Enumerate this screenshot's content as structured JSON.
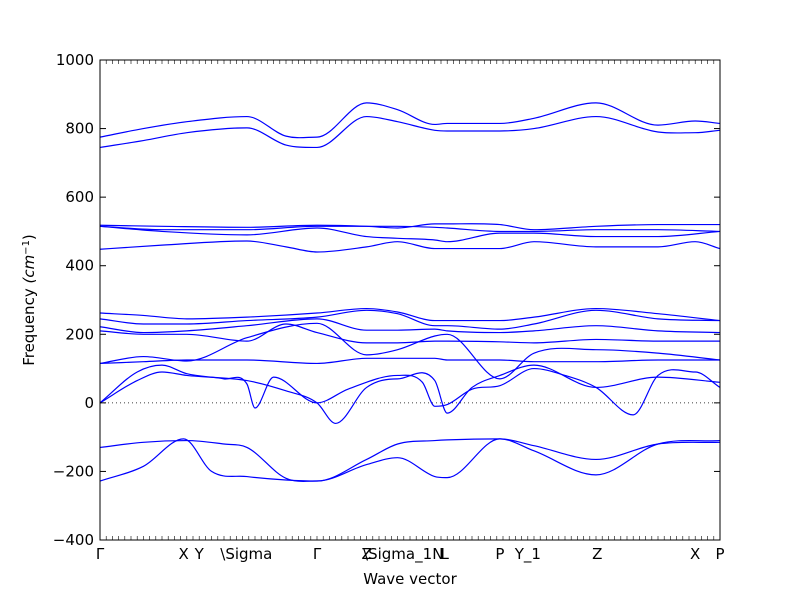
{
  "chart_data": {
    "type": "line",
    "xlabel": "Wave vector",
    "ylabel": "Frequency ($cm^{-1}$)",
    "ylabel_parts": {
      "text": "Frequency ",
      "unit": "(cm",
      "exponent": "−1",
      "close": ")"
    },
    "ylim": [
      -400,
      1000
    ],
    "yticks": [
      -400,
      -200,
      0,
      200,
      400,
      600,
      800,
      1000
    ],
    "xlim": [
      0,
      1
    ],
    "xticks": [
      {
        "x": 0.0,
        "label": "Γ"
      },
      {
        "x": 0.135,
        "label": "X"
      },
      {
        "x": 0.16,
        "label": "Y"
      },
      {
        "x": 0.236,
        "label": "\\Sigma"
      },
      {
        "x": 0.35,
        "label": "Γ"
      },
      {
        "x": 0.43,
        "label": "Z"
      },
      {
        "x": 0.48,
        "label": "\\Sigma_1"
      },
      {
        "x": 0.545,
        "label": "N"
      },
      {
        "x": 0.556,
        "label": "L"
      },
      {
        "x": 0.645,
        "label": "P"
      },
      {
        "x": 0.69,
        "label": "Y_1"
      },
      {
        "x": 0.802,
        "label": "Z"
      },
      {
        "x": 0.96,
        "label": "X"
      },
      {
        "x": 1.0,
        "label": "P"
      }
    ],
    "grid": false,
    "zero_line": true,
    "colors": {
      "bands": "#0000ff",
      "zero_line": "#000000"
    },
    "series": [
      {
        "x": [
          0,
          0.07,
          0.14,
          0.237,
          0.3,
          0.35,
          0.43,
          0.48,
          0.54,
          0.56,
          0.645,
          0.7,
          0.8,
          0.9,
          0.96,
          1.0
        ],
        "y": [
          775,
          800,
          820,
          835,
          778,
          775,
          875,
          855,
          812,
          815,
          815,
          830,
          875,
          810,
          822,
          815
        ]
      },
      {
        "x": [
          0,
          0.07,
          0.14,
          0.237,
          0.3,
          0.35,
          0.43,
          0.48,
          0.54,
          0.56,
          0.645,
          0.7,
          0.8,
          0.9,
          0.96,
          1.0
        ],
        "y": [
          745,
          765,
          788,
          802,
          752,
          745,
          835,
          820,
          795,
          793,
          793,
          800,
          835,
          790,
          788,
          795
        ]
      },
      {
        "x": [
          0,
          0.1,
          0.237,
          0.35,
          0.43,
          0.48,
          0.54,
          0.56,
          0.645,
          0.7,
          0.8,
          0.9,
          1.0
        ],
        "y": [
          518,
          515,
          512,
          518,
          515,
          510,
          522,
          522,
          520,
          505,
          515,
          520,
          520
        ]
      },
      {
        "x": [
          0,
          0.1,
          0.237,
          0.35,
          0.43,
          0.48,
          0.54,
          0.56,
          0.645,
          0.7,
          0.8,
          0.9,
          1.0
        ],
        "y": [
          515,
          505,
          505,
          515,
          515,
          515,
          512,
          510,
          500,
          500,
          505,
          505,
          500
        ]
      },
      {
        "x": [
          0,
          0.1,
          0.237,
          0.35,
          0.43,
          0.48,
          0.54,
          0.56,
          0.645,
          0.7,
          0.8,
          0.9,
          1.0
        ],
        "y": [
          515,
          500,
          490,
          510,
          485,
          480,
          475,
          470,
          495,
          495,
          485,
          485,
          500
        ]
      },
      {
        "x": [
          0,
          0.1,
          0.237,
          0.3,
          0.35,
          0.43,
          0.48,
          0.54,
          0.56,
          0.645,
          0.7,
          0.8,
          0.9,
          0.96,
          1.0
        ],
        "y": [
          448,
          460,
          472,
          455,
          440,
          455,
          470,
          450,
          450,
          450,
          470,
          455,
          455,
          470,
          450
        ]
      },
      {
        "x": [
          0,
          0.07,
          0.14,
          0.237,
          0.35,
          0.43,
          0.48,
          0.54,
          0.56,
          0.645,
          0.7,
          0.8,
          0.9,
          1.0
        ],
        "y": [
          262,
          255,
          245,
          250,
          262,
          275,
          265,
          240,
          240,
          240,
          250,
          275,
          260,
          240
        ]
      },
      {
        "x": [
          0,
          0.07,
          0.14,
          0.237,
          0.35,
          0.43,
          0.48,
          0.54,
          0.56,
          0.645,
          0.7,
          0.8,
          0.9,
          1.0
        ],
        "y": [
          245,
          230,
          230,
          240,
          250,
          270,
          260,
          225,
          225,
          215,
          230,
          270,
          245,
          240
        ]
      },
      {
        "x": [
          0,
          0.07,
          0.14,
          0.237,
          0.35,
          0.43,
          0.48,
          0.54,
          0.56,
          0.645,
          0.7,
          0.8,
          0.9,
          1.0
        ],
        "y": [
          222,
          205,
          210,
          225,
          245,
          212,
          212,
          215,
          210,
          205,
          210,
          225,
          210,
          205
        ]
      },
      {
        "x": [
          0,
          0.07,
          0.14,
          0.237,
          0.3,
          0.35,
          0.43,
          0.48,
          0.54,
          0.56,
          0.645,
          0.7,
          0.8,
          0.9,
          1.0
        ],
        "y": [
          210,
          200,
          200,
          180,
          230,
          205,
          175,
          175,
          180,
          180,
          178,
          175,
          185,
          180,
          180
        ]
      },
      {
        "x": [
          0,
          0.07,
          0.14,
          0.237,
          0.35,
          0.43,
          0.48,
          0.54,
          0.56,
          0.645,
          0.7,
          0.8,
          0.9,
          1.0
        ],
        "y": [
          115,
          135,
          122,
          190,
          232,
          140,
          155,
          195,
          200,
          70,
          145,
          155,
          145,
          125
        ]
      },
      {
        "x": [
          0,
          0.07,
          0.14,
          0.237,
          0.35,
          0.43,
          0.48,
          0.54,
          0.56,
          0.645,
          0.7,
          0.8,
          0.9,
          1.0
        ],
        "y": [
          115,
          120,
          125,
          125,
          115,
          130,
          130,
          130,
          125,
          125,
          120,
          120,
          125,
          125
        ]
      },
      {
        "x": [
          0,
          0.06,
          0.1,
          0.14,
          0.2,
          0.237,
          0.25,
          0.28,
          0.35,
          0.4,
          0.48,
          0.52,
          0.54,
          0.56,
          0.6,
          0.645,
          0.7,
          0.75,
          0.8,
          0.86,
          0.9,
          0.96,
          1.0
        ],
        "y": [
          0,
          90,
          110,
          85,
          70,
          55,
          -15,
          75,
          0,
          40,
          80,
          60,
          -10,
          -5,
          40,
          50,
          100,
          80,
          45,
          -35,
          80,
          90,
          45
        ]
      },
      {
        "x": [
          0,
          0.06,
          0.1,
          0.14,
          0.237,
          0.3,
          0.35,
          0.38,
          0.43,
          0.48,
          0.54,
          0.56,
          0.6,
          0.645,
          0.7,
          0.8,
          0.9,
          1.0
        ],
        "y": [
          0,
          65,
          90,
          80,
          65,
          35,
          0,
          -60,
          45,
          70,
          65,
          -30,
          45,
          80,
          110,
          45,
          75,
          60
        ]
      },
      {
        "x": [
          0,
          0.07,
          0.14,
          0.2,
          0.237,
          0.3,
          0.35,
          0.43,
          0.48,
          0.54,
          0.56,
          0.645,
          0.7,
          0.8,
          0.9,
          1.0
        ],
        "y": [
          -130,
          -115,
          -110,
          -120,
          -130,
          -220,
          -228,
          -180,
          -160,
          -215,
          -218,
          -105,
          -140,
          -210,
          -120,
          -110
        ]
      },
      {
        "x": [
          0,
          0.07,
          0.135,
          0.18,
          0.237,
          0.3,
          0.35,
          0.43,
          0.48,
          0.54,
          0.56,
          0.645,
          0.7,
          0.8,
          0.9,
          1.0
        ],
        "y": [
          -228,
          -185,
          -105,
          -200,
          -215,
          -225,
          -228,
          -165,
          -120,
          -110,
          -108,
          -105,
          -125,
          -165,
          -120,
          -115
        ]
      }
    ]
  }
}
